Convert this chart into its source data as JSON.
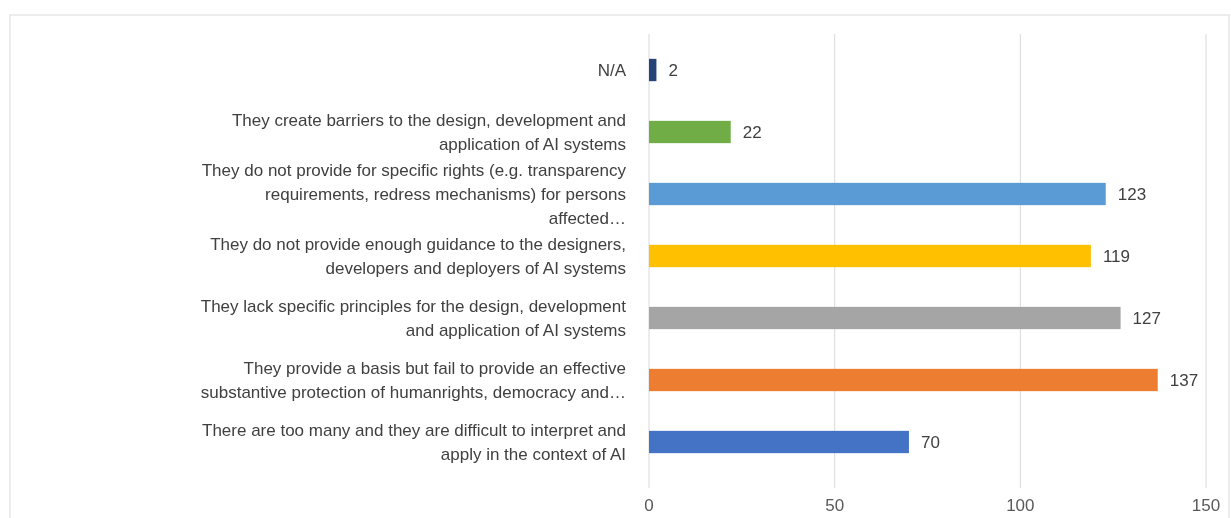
{
  "chart_data": {
    "type": "bar",
    "orientation": "horizontal",
    "categories": [
      "N/A",
      "They create barriers to the design, development and application of AI systems",
      "They do not provide for specific rights (e.g. transparency requirements, redress mechanisms) for persons affected…",
      "They do not provide enough guidance to the designers, developers and deployers of AI systems",
      "They lack specific principles for the design, development and application of AI systems",
      "They provide a basis but fail to provide an effective substantive protection of humanrights, democracy and…",
      "There are too many and they are difficult to interpret and apply in the context of AI"
    ],
    "values": [
      2,
      22,
      123,
      119,
      127,
      137,
      70
    ],
    "colors": [
      "#264478",
      "#70ad47",
      "#5b9bd5",
      "#ffc000",
      "#a5a5a5",
      "#ed7d31",
      "#4472c4"
    ],
    "xlim": [
      0,
      150
    ],
    "xticks": [
      0,
      50,
      100,
      150
    ],
    "grid": "x",
    "data_labels": true
  }
}
